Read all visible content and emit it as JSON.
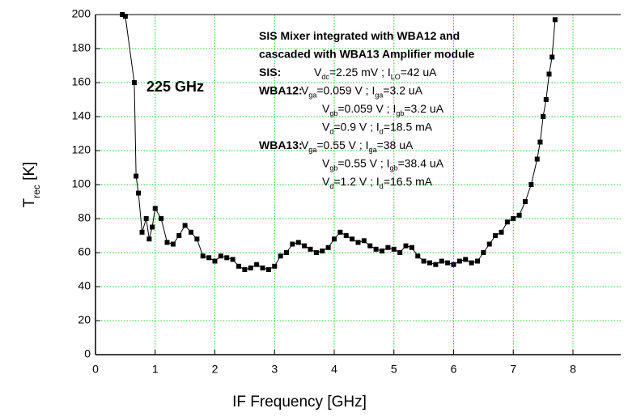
{
  "chart_data": {
    "type": "line",
    "x_label": "IF Frequency [GHz]",
    "y_label": [
      "T",
      "rec",
      " [K]"
    ],
    "frequency_label": "225 GHz",
    "annotation": [
      {
        "bold": "SIS Mixer integrated with WBA12 and",
        "parts": []
      },
      {
        "bold": "cascaded with WBA13 Amplifier module",
        "parts": []
      },
      {
        "bold": "SIS:",
        "parts": [
          "V",
          "dc",
          "=2.25 mV ; I",
          "LO",
          "=42 uA"
        ]
      },
      {
        "bold": "WBA12:",
        "parts": [
          "V",
          "ga",
          "=0.059 V ; I",
          "ga",
          "=3.2 uA"
        ]
      },
      {
        "parts": [
          "V",
          "gb",
          "=0.059 V ; I",
          "gb",
          "=3.2 uA"
        ]
      },
      {
        "parts": [
          "V",
          "d",
          "=0.9 V ; I",
          "d",
          "=18.5 mA"
        ]
      },
      {
        "bold": "WBA13:",
        "parts": [
          "V",
          "ga",
          "=0.55 V ; I",
          "ga",
          "=38 uA"
        ]
      },
      {
        "parts": [
          "V",
          "gb",
          "=0.55 V ; I",
          "gb",
          "=38.4 uA"
        ]
      },
      {
        "parts": [
          "V",
          "d",
          "=1.2 V ; I",
          "d",
          "=16.5 mA"
        ]
      }
    ],
    "x": [
      0.45,
      0.5,
      0.65,
      0.68,
      0.72,
      0.78,
      0.85,
      0.9,
      0.95,
      1.0,
      1.1,
      1.2,
      1.3,
      1.4,
      1.5,
      1.6,
      1.7,
      1.8,
      1.9,
      2.0,
      2.1,
      2.2,
      2.3,
      2.4,
      2.5,
      2.6,
      2.7,
      2.8,
      2.9,
      3.0,
      3.1,
      3.2,
      3.3,
      3.4,
      3.5,
      3.6,
      3.7,
      3.8,
      3.9,
      4.0,
      4.1,
      4.2,
      4.3,
      4.4,
      4.5,
      4.6,
      4.7,
      4.8,
      4.9,
      5.0,
      5.1,
      5.2,
      5.3,
      5.4,
      5.5,
      5.6,
      5.7,
      5.8,
      5.9,
      6.0,
      6.1,
      6.2,
      6.3,
      6.4,
      6.5,
      6.6,
      6.7,
      6.8,
      6.9,
      7.0,
      7.1,
      7.2,
      7.3,
      7.4,
      7.45,
      7.5,
      7.55,
      7.6,
      7.65,
      7.7
    ],
    "series": [
      {
        "color": "#000000",
        "values": [
          200,
          199,
          160,
          105,
          95,
          72,
          80,
          68,
          75,
          86,
          80,
          66,
          65,
          70,
          76,
          72,
          68,
          58,
          57,
          55,
          58,
          57,
          56,
          52,
          50,
          51,
          53,
          51,
          50,
          52,
          58,
          60,
          65,
          66,
          64,
          62,
          60,
          61,
          63,
          68,
          72,
          70,
          68,
          66,
          67,
          64,
          62,
          61,
          63,
          62,
          60,
          64,
          63,
          58,
          55,
          54,
          53,
          55,
          54,
          53,
          55,
          56,
          54,
          55,
          60,
          65,
          70,
          72,
          78,
          80,
          82,
          90,
          100,
          115,
          125,
          140,
          150,
          165,
          175,
          197
        ]
      }
    ],
    "xlim": [
      0,
      8.8
    ],
    "xticks": [
      0,
      1,
      2,
      3,
      4,
      5,
      6,
      7,
      8
    ],
    "ylim": [
      0,
      200
    ],
    "yticks": [
      0,
      20,
      40,
      60,
      80,
      100,
      120,
      140,
      160,
      180,
      200
    ],
    "grid": true,
    "grid_color": "#22cc22"
  }
}
